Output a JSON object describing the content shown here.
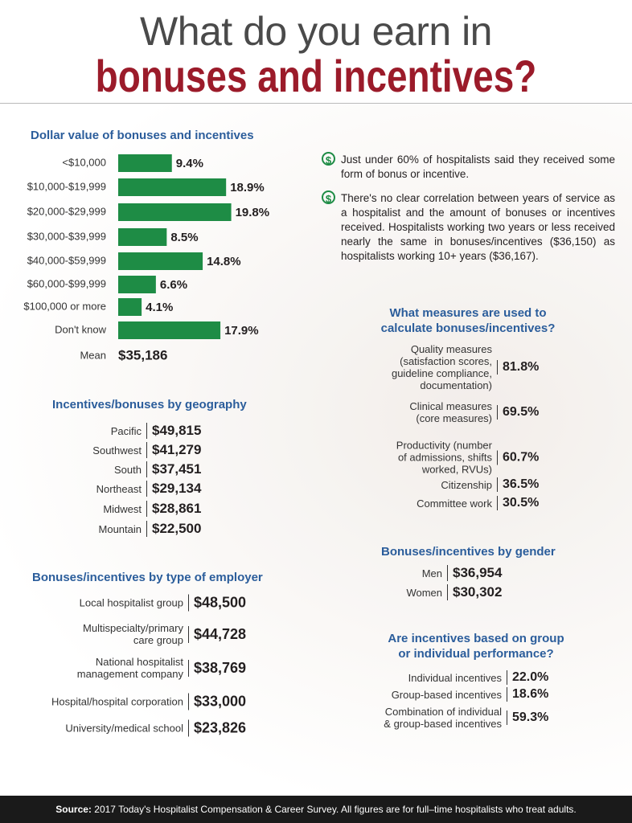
{
  "header": {
    "line1": "What do you earn in",
    "line2": "bonuses and incentives?"
  },
  "chart_data": {
    "type": "bar",
    "orientation": "horizontal",
    "title": "Dollar value of bonuses and incentives",
    "categories": [
      "<$10,000",
      "$10,000-$19,999",
      "$20,000-$29,999",
      "$30,000-$39,999",
      "$40,000-$59,999",
      "$60,000-$99,999",
      "$100,000 or more",
      "Don't know"
    ],
    "values": [
      9.4,
      18.9,
      19.8,
      8.5,
      14.8,
      6.6,
      4.1,
      17.9
    ],
    "value_labels": [
      "9.4%",
      "18.9%",
      "19.8%",
      "8.5%",
      "14.8%",
      "6.6%",
      "4.1%",
      "17.9%"
    ],
    "color": "#1e8c45"
  },
  "mean": {
    "label": "Mean",
    "value": "$35,186"
  },
  "notes": [
    "Just under 60% of hospitalists said they received some form of bonus or incentive.",
    "There's no clear correlation between years of service as a hospitalist and the amount of bonuses or incentives received. Hospitalists working two years or less received nearly the same in bonuses/incentives ($36,150) as hospitalists working 10+ years ($36,167)."
  ],
  "geography": {
    "title": "Incentives/bonuses by geography",
    "rows": [
      [
        "Pacific",
        "$49,815"
      ],
      [
        "Southwest",
        "$41,279"
      ],
      [
        "South",
        "$37,451"
      ],
      [
        "Northeast",
        "$29,134"
      ],
      [
        "Midwest",
        "$28,861"
      ],
      [
        "Mountain",
        "$22,500"
      ]
    ]
  },
  "employer": {
    "title": "Bonuses/incentives by type of employer",
    "rows": [
      [
        "Local hospitalist group",
        "$48,500"
      ],
      [
        "Multispecialty/primary\ncare group",
        "$44,728"
      ],
      [
        "National hospitalist\nmanagement company",
        "$38,769"
      ],
      [
        "Hospital/hospital corporation",
        "$33,000"
      ],
      [
        "University/medical school",
        "$23,826"
      ]
    ]
  },
  "measures": {
    "title": "What measures are used to\ncalculate bonuses/incentives?",
    "rows": [
      [
        "Quality measures\n(satisfaction scores,\nguideline compliance,\ndocumentation)",
        "81.8%"
      ],
      [
        "Clinical measures\n(core measures)",
        "69.5%"
      ],
      [
        "Productivity (number\nof admissions, shifts\nworked, RVUs)",
        "60.7%"
      ],
      [
        "Citizenship",
        "36.5%"
      ],
      [
        "Committee work",
        "30.5%"
      ]
    ]
  },
  "gender": {
    "title": "Bonuses/incentives by gender",
    "rows": [
      [
        "Men",
        "$36,954"
      ],
      [
        "Women",
        "$30,302"
      ]
    ]
  },
  "performance": {
    "title": "Are incentives based on group\nor individual performance?",
    "rows": [
      [
        "Individual incentives",
        "22.0%"
      ],
      [
        "Group-based incentives",
        "18.6%"
      ],
      [
        "Combination of individual\n& group-based incentives",
        "59.3%"
      ]
    ]
  },
  "footer": {
    "source_label": "Source:",
    "source_text": "2017 Today's Hospitalist Compensation & Career Survey. All figures are for full–time hospitalists who treat adults."
  }
}
